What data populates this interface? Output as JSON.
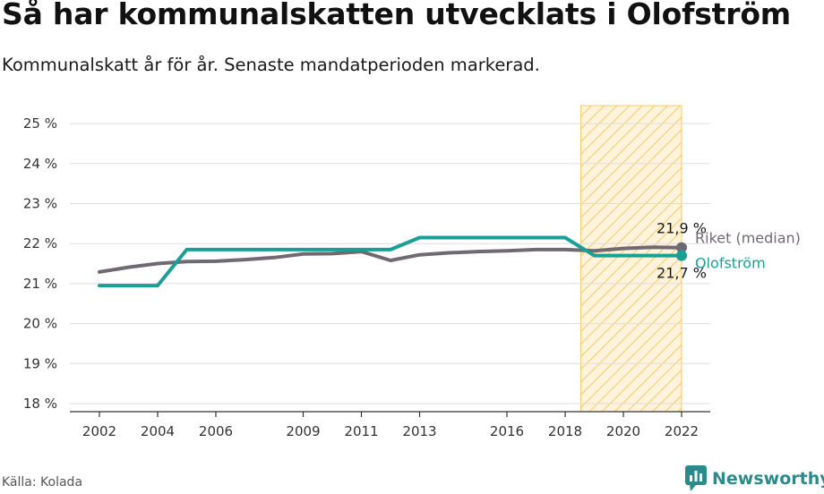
{
  "title": "Så har kommunalskatten utvecklats i Olofström",
  "subtitle": "Kommunalskatt år för år. Senaste mandatperioden markerad.",
  "source": "Källa: Kolada",
  "brand": {
    "name": "Newsworthy",
    "icon": "newsworthy-logo-icon"
  },
  "colors": {
    "olofstrom": "#1a9e96",
    "riket": "#6f6a72",
    "highlight_fill": "#fff3dc",
    "highlight_stroke": "#f7c96a",
    "grid": "#dddddd",
    "brand": "#2b8a8a"
  },
  "chart_data": {
    "type": "line",
    "title": "Så har kommunalskatten utvecklats i Olofström",
    "subtitle": "Kommunalskatt år för år. Senaste mandatperioden markerad.",
    "xlabel": "",
    "ylabel": "",
    "x_tick_labels": [
      "2002",
      "2004",
      "2006",
      "2009",
      "2011",
      "2013",
      "2016",
      "2018",
      "2020",
      "2022"
    ],
    "y_tick_labels": [
      "18 %",
      "19 %",
      "20 %",
      "21 %",
      "22 %",
      "23 %",
      "24 %",
      "25 %"
    ],
    "ylim": [
      18,
      25
    ],
    "xlim": [
      2002,
      2022
    ],
    "grid": true,
    "highlight_period": [
      2019,
      2022
    ],
    "series": [
      {
        "name": "Riket (median)",
        "color": "#6f6a72",
        "x": [
          2002,
          2003,
          2004,
          2005,
          2006,
          2007,
          2008,
          2009,
          2010,
          2011,
          2012,
          2013,
          2014,
          2015,
          2016,
          2017,
          2018,
          2019,
          2020,
          2021,
          2022
        ],
        "values": [
          21.29,
          21.41,
          21.5,
          21.55,
          21.56,
          21.6,
          21.65,
          21.74,
          21.75,
          21.8,
          21.58,
          21.72,
          21.77,
          21.8,
          21.82,
          21.85,
          21.85,
          21.82,
          21.88,
          21.91,
          21.9
        ],
        "end_label": "21,9 %",
        "name_label": "Riket (median)"
      },
      {
        "name": "Olofström",
        "color": "#1a9e96",
        "x": [
          2002,
          2003,
          2004,
          2005,
          2006,
          2007,
          2008,
          2009,
          2010,
          2011,
          2012,
          2013,
          2014,
          2015,
          2016,
          2017,
          2018,
          2019,
          2020,
          2021,
          2022
        ],
        "values": [
          20.95,
          20.95,
          20.95,
          21.85,
          21.85,
          21.85,
          21.85,
          21.85,
          21.85,
          21.85,
          21.85,
          22.15,
          22.15,
          22.15,
          22.15,
          22.15,
          22.15,
          21.7,
          21.7,
          21.7,
          21.7
        ],
        "end_label": "21,7 %",
        "name_label": "Olofström"
      }
    ]
  }
}
